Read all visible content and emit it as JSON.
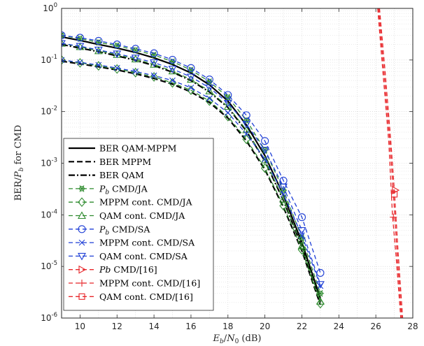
{
  "chart_data": {
    "type": "line",
    "xlabel": "E_b/N_0 (dB)",
    "xlabel_parts": {
      "e": "E",
      "b": "b",
      "slash": "/",
      "n": "N",
      "zero": "0",
      "unit": " (dB)"
    },
    "ylabel": "BER/P_b for CMD",
    "ylabel_parts": {
      "ber": "BER/",
      "p": "P",
      "b": "b",
      "rest": " for CMD"
    },
    "xlim": [
      9,
      28
    ],
    "ylim": [
      1e-06,
      1
    ],
    "yscale": "log",
    "grid": true,
    "legend_position": "lower-left",
    "x_ticks": [
      {
        "v": 10,
        "label": "10"
      },
      {
        "v": 12,
        "label": "12"
      },
      {
        "v": 14,
        "label": "14"
      },
      {
        "v": 16,
        "label": "16"
      },
      {
        "v": 18,
        "label": "18"
      },
      {
        "v": 20,
        "label": "20"
      },
      {
        "v": 22,
        "label": "22"
      },
      {
        "v": 24,
        "label": "24"
      },
      {
        "v": 26,
        "label": "26"
      },
      {
        "v": 28,
        "label": "28"
      }
    ],
    "y_ticks": [
      {
        "v": 1,
        "base": "10",
        "exp": "0"
      },
      {
        "v": 0.1,
        "base": "10",
        "exp": "-1"
      },
      {
        "v": 0.01,
        "base": "10",
        "exp": "-2"
      },
      {
        "v": 0.001,
        "base": "10",
        "exp": "-3"
      },
      {
        "v": 0.0001,
        "base": "10",
        "exp": "-4"
      },
      {
        "v": 1e-05,
        "base": "10",
        "exp": "-5"
      },
      {
        "v": 1e-06,
        "base": "10",
        "exp": "-6"
      }
    ],
    "series": [
      {
        "name": "BER QAM-MPPM",
        "color": "#000000",
        "dash": "solid",
        "width": 2.2,
        "marker": "none",
        "x": [
          9,
          10,
          11,
          12,
          13,
          14,
          15,
          16,
          17,
          18,
          19,
          20,
          21,
          22,
          23
        ],
        "y": [
          0.28,
          0.24,
          0.2,
          0.17,
          0.14,
          0.11,
          0.082,
          0.056,
          0.033,
          0.016,
          0.0055,
          0.0014,
          0.00024,
          2.9e-05,
          2.4e-06
        ]
      },
      {
        "name": "BER MPPM",
        "color": "#000000",
        "dash": "8,4",
        "width": 2.2,
        "marker": "none",
        "x": [
          9,
          10,
          11,
          12,
          13,
          14,
          15,
          16,
          17,
          18,
          19,
          20,
          21,
          22,
          23
        ],
        "y": [
          0.095,
          0.084,
          0.074,
          0.064,
          0.054,
          0.044,
          0.034,
          0.024,
          0.015,
          0.0075,
          0.0027,
          0.00075,
          0.00014,
          2e-05,
          1.8e-06
        ]
      },
      {
        "name": "BER QAM",
        "color": "#000000",
        "dash": "9,3,2,3",
        "width": 2.2,
        "marker": "none",
        "x": [
          9,
          10,
          11,
          12,
          13,
          14,
          15,
          16,
          17,
          18,
          19,
          20,
          21,
          22,
          23
        ],
        "y": [
          0.2,
          0.17,
          0.145,
          0.12,
          0.099,
          0.078,
          0.058,
          0.04,
          0.024,
          0.012,
          0.0042,
          0.0011,
          0.00019,
          2.4e-05,
          2e-06
        ]
      },
      {
        "name": "P_b CMD/JA",
        "label_parts": {
          "pre": "",
          "it": "P",
          "sub": "b",
          "post": " CMD/JA"
        },
        "color": "#2e8b2e",
        "dash": "6,4",
        "width": 1.3,
        "marker": "star",
        "x": [
          9,
          10,
          11,
          12,
          13,
          14,
          15,
          16,
          17,
          18,
          19,
          20,
          21,
          22,
          23
        ],
        "y": [
          0.3,
          0.26,
          0.22,
          0.19,
          0.155,
          0.125,
          0.093,
          0.064,
          0.038,
          0.019,
          0.0068,
          0.0018,
          0.0003,
          3.6e-05,
          3e-06
        ]
      },
      {
        "name": "MPPM cont. CMD/JA",
        "label_parts": {
          "pre": "MPPM cont. CMD/JA",
          "it": "",
          "sub": "",
          "post": ""
        },
        "color": "#2e8b2e",
        "dash": "6,4",
        "width": 1.3,
        "marker": "diamond",
        "x": [
          9,
          10,
          11,
          12,
          13,
          14,
          15,
          16,
          17,
          18,
          19,
          20,
          21,
          22,
          23
        ],
        "y": [
          0.1,
          0.088,
          0.077,
          0.067,
          0.057,
          0.047,
          0.036,
          0.026,
          0.016,
          0.008,
          0.0029,
          0.0008,
          0.00015,
          2.1e-05,
          1.9e-06
        ]
      },
      {
        "name": "QAM cont. CMD/JA",
        "label_parts": {
          "pre": "QAM cont. CMD/JA",
          "it": "",
          "sub": "",
          "post": ""
        },
        "color": "#2e8b2e",
        "dash": "6,4",
        "width": 1.3,
        "marker": "triangle-up",
        "x": [
          9,
          10,
          11,
          12,
          13,
          14,
          15,
          16,
          17,
          18,
          19,
          20,
          21,
          22,
          23
        ],
        "y": [
          0.21,
          0.18,
          0.15,
          0.127,
          0.104,
          0.082,
          0.061,
          0.042,
          0.025,
          0.0125,
          0.0044,
          0.00115,
          0.0002,
          2.5e-05,
          2.1e-06
        ]
      },
      {
        "name": "P_b CMD/SA",
        "label_parts": {
          "pre": "",
          "it": "P",
          "sub": "b",
          "post": " CMD/SA"
        },
        "color": "#1f3fd6",
        "dash": "6,4",
        "width": 1.3,
        "marker": "circle",
        "x": [
          9,
          10,
          11,
          12,
          13,
          14,
          15,
          16,
          17,
          18,
          19,
          20,
          21,
          22,
          23
        ],
        "y": [
          0.3,
          0.27,
          0.235,
          0.2,
          0.165,
          0.135,
          0.101,
          0.07,
          0.042,
          0.021,
          0.0085,
          0.0027,
          0.00046,
          9e-05,
          7.5e-06
        ]
      },
      {
        "name": "MPPM cont. CMD/SA",
        "label_parts": {
          "pre": "MPPM cont. CMD/SA",
          "it": "",
          "sub": "",
          "post": ""
        },
        "color": "#1f3fd6",
        "dash": "6,4",
        "width": 1.3,
        "marker": "x",
        "x": [
          9,
          10,
          11,
          12,
          13,
          14,
          15,
          16,
          17,
          18,
          19,
          20,
          21,
          22,
          23
        ],
        "y": [
          0.1,
          0.09,
          0.08,
          0.07,
          0.06,
          0.05,
          0.04,
          0.029,
          0.018,
          0.0095,
          0.0037,
          0.0012,
          0.00025,
          4e-05,
          4.2e-06
        ]
      },
      {
        "name": "QAM cont. CMD/SA",
        "label_parts": {
          "pre": "QAM cont. CMD/SA",
          "it": "",
          "sub": "",
          "post": ""
        },
        "color": "#1f3fd6",
        "dash": "6,4",
        "width": 1.3,
        "marker": "triangle-down",
        "x": [
          9,
          10,
          11,
          12,
          13,
          14,
          15,
          16,
          17,
          18,
          19,
          20,
          21,
          22,
          23
        ],
        "y": [
          0.21,
          0.185,
          0.157,
          0.132,
          0.11,
          0.089,
          0.067,
          0.047,
          0.029,
          0.0146,
          0.0057,
          0.0018,
          0.00035,
          5e-05,
          4.5e-06
        ]
      },
      {
        "name": "Pb CMD/[16]",
        "label_parts": {
          "pre": "",
          "it": "Pb",
          "sub": "",
          "post": " CMD/[16]"
        },
        "color": "#e8262a",
        "dash": "6,4",
        "width": 1.3,
        "marker": "triangle-right",
        "x": [
          26.2,
          26.5,
          26.8,
          27.0,
          27.2,
          27.45
        ],
        "y": [
          1,
          0.06,
          0.003,
          0.0003,
          2e-05,
          1e-06
        ]
      },
      {
        "name": "MPPM cont. CMD/[16]",
        "label_parts": {
          "pre": "MPPM cont. CMD/[16]",
          "it": "",
          "sub": "",
          "post": ""
        },
        "color": "#e8262a",
        "dash": "6,4",
        "width": 1.3,
        "marker": "plus",
        "x": [
          26.1,
          26.4,
          26.7,
          26.9,
          27.1,
          27.35
        ],
        "y": [
          1,
          0.05,
          0.0025,
          0.0001,
          1.5e-05,
          1e-06
        ]
      },
      {
        "name": "QAM cont. CMD/[16]",
        "label_parts": {
          "pre": "QAM cont. CMD/[16]",
          "it": "",
          "sub": "",
          "post": ""
        },
        "color": "#e8262a",
        "dash": "6,4",
        "width": 1.3,
        "marker": "square",
        "x": [
          26.15,
          26.45,
          26.75,
          26.95,
          27.15,
          27.4
        ],
        "y": [
          1,
          0.055,
          0.0028,
          0.00025,
          1.8e-05,
          1e-06
        ]
      }
    ],
    "red_marker_points": [
      {
        "series": 9,
        "x": 27.05,
        "y": 0.0003
      },
      {
        "series": 10,
        "x": 26.95,
        "y": 9e-05
      },
      {
        "series": 11,
        "x": 27.0,
        "y": 0.00025
      }
    ]
  }
}
